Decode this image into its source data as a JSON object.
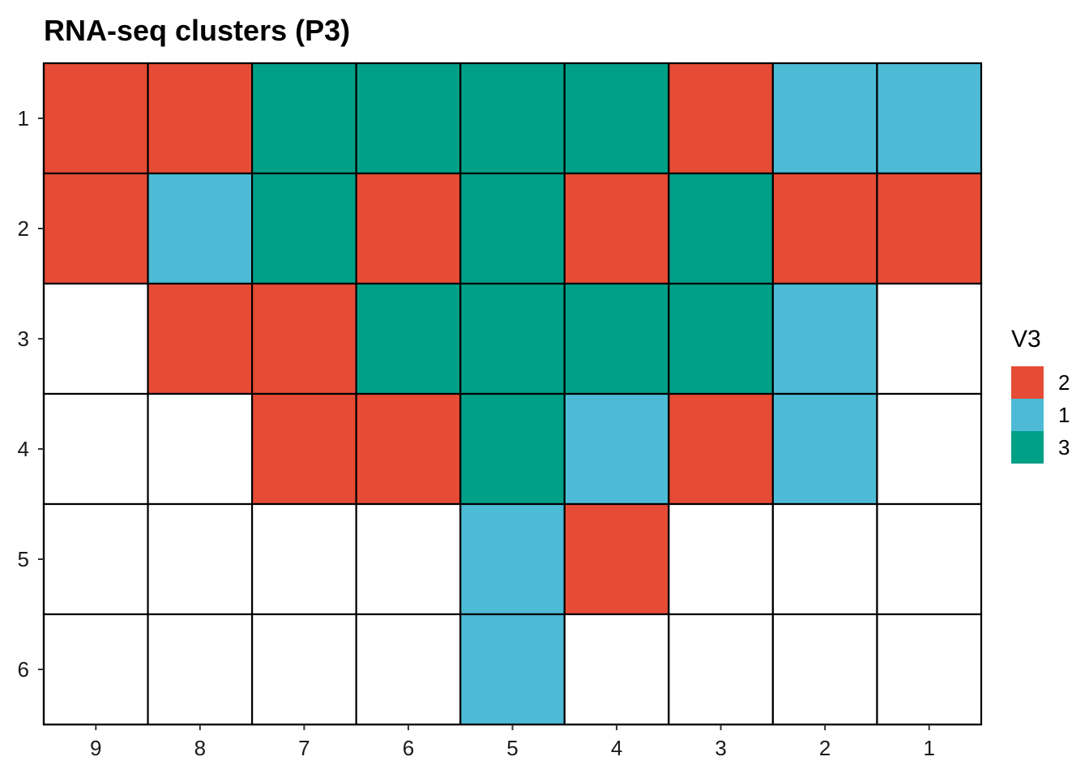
{
  "chart_data": {
    "type": "heatmap",
    "title": "RNA-seq clusters (P3)",
    "xlabel": "",
    "ylabel": "",
    "x_categories": [
      "9",
      "8",
      "7",
      "6",
      "5",
      "4",
      "3",
      "2",
      "1"
    ],
    "y_categories": [
      "1",
      "2",
      "3",
      "4",
      "5",
      "6"
    ],
    "cells": [
      [
        "2",
        "2",
        "3",
        "3",
        "3",
        "3",
        "2",
        "1",
        "1"
      ],
      [
        "2",
        "1",
        "3",
        "2",
        "3",
        "2",
        "3",
        "2",
        "2"
      ],
      [
        null,
        "2",
        "2",
        "3",
        "3",
        "3",
        "3",
        "1",
        null
      ],
      [
        null,
        null,
        "2",
        "2",
        "3",
        "1",
        "2",
        "1",
        null
      ],
      [
        null,
        null,
        null,
        null,
        "1",
        "2",
        null,
        null,
        null
      ],
      [
        null,
        null,
        null,
        null,
        "1",
        null,
        null,
        null,
        null
      ]
    ],
    "legend": {
      "title": "V3",
      "placement": "right",
      "entries": [
        {
          "label": "2",
          "color": "#E64B35"
        },
        {
          "label": "1",
          "color": "#4DBBD5"
        },
        {
          "label": "3",
          "color": "#00A087"
        }
      ]
    },
    "empty_color": "#FFFFFF",
    "grid": true
  }
}
